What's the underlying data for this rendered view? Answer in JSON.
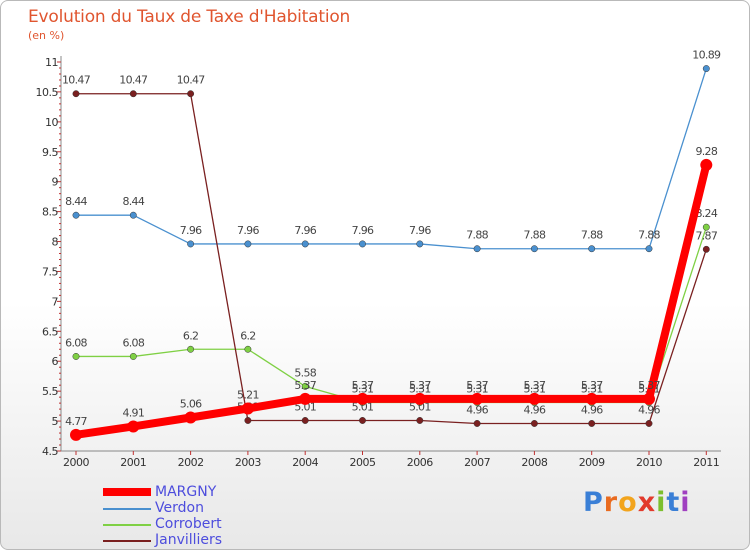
{
  "header": {
    "title": "Evolution du Taux de Taxe d'Habitation",
    "unit": "(en %)"
  },
  "logo": {
    "letters": [
      "P",
      "r",
      "o",
      "x",
      "i",
      "t",
      "i"
    ],
    "colors": [
      "#3a7fd6",
      "#e96b1f",
      "#f2a41d",
      "#e23a2c",
      "#7cbf2e",
      "#3a7fd6",
      "#a040c0"
    ]
  },
  "chart_data": {
    "type": "line",
    "x": [
      "2000",
      "2001",
      "2002",
      "2003",
      "2004",
      "2005",
      "2006",
      "2007",
      "2008",
      "2009",
      "2010",
      "2011"
    ],
    "y_ticks": [
      "4.5",
      "5",
      "5.5",
      "6",
      "6.5",
      "7",
      "7.5",
      "8",
      "8.5",
      "9",
      "9.5",
      "10",
      "10.5",
      "11"
    ],
    "ylim": [
      4.5,
      11
    ],
    "grid": false,
    "legend_position": "bottom-left",
    "series": [
      {
        "name": "Verdon",
        "color": "#4a90cf",
        "values": [
          8.44,
          8.44,
          7.96,
          7.96,
          7.96,
          7.96,
          7.96,
          7.88,
          7.88,
          7.88,
          7.88,
          10.89
        ],
        "labels": [
          "8.44",
          "8.44",
          "7.96",
          "7.96",
          "7.96",
          "7.96",
          "7.96",
          "7.88",
          "7.88",
          "7.88",
          "7.88",
          "10.89"
        ]
      },
      {
        "name": "Corrobert",
        "color": "#7fd044",
        "values": [
          6.08,
          6.08,
          6.2,
          6.2,
          5.58,
          5.31,
          5.31,
          5.31,
          5.31,
          5.31,
          5.31,
          8.24
        ],
        "labels": [
          "6.08",
          "6.08",
          "6.2",
          "6.2",
          "5.58",
          "5.31",
          "5.31",
          "5.31",
          "5.31",
          "5.31",
          "5.31",
          "8.24"
        ]
      },
      {
        "name": "Janvilliers",
        "color": "#7a2020",
        "values": [
          10.47,
          10.47,
          10.47,
          5.01,
          5.01,
          5.01,
          5.01,
          4.96,
          4.96,
          4.96,
          4.96,
          7.87
        ],
        "labels": [
          "10.47",
          "10.47",
          "10.47",
          "5.01",
          "5.01",
          "5.01",
          "5.01",
          "4.96",
          "4.96",
          "4.96",
          "4.96",
          "7.87"
        ]
      },
      {
        "name": "MARGNY",
        "color": "#ff0000",
        "values": [
          4.77,
          4.91,
          5.06,
          5.21,
          5.37,
          5.37,
          5.37,
          5.37,
          5.37,
          5.37,
          5.37,
          9.28
        ],
        "labels": [
          "4.77",
          "4.91",
          "5.06",
          "5.21",
          "5.37",
          "5.37",
          "5.37",
          "5.37",
          "5.37",
          "5.37",
          "5.37",
          "9.28"
        ]
      }
    ],
    "legend": [
      {
        "name": "MARGNY",
        "color": "#ff0000",
        "thick": true
      },
      {
        "name": "Verdon",
        "color": "#4a90cf",
        "thick": false
      },
      {
        "name": "Corrobert",
        "color": "#7fd044",
        "thick": false
      },
      {
        "name": "Janvilliers",
        "color": "#7a2020",
        "thick": false
      }
    ]
  }
}
